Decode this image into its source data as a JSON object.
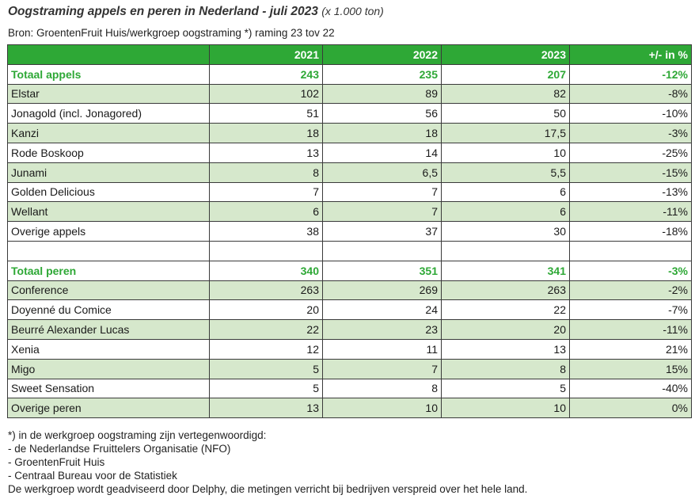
{
  "title": {
    "main": "Oogstraming appels en peren in Nederland - juli 2023",
    "unit": "(x 1.000 ton)"
  },
  "source": "Bron: GroentenFruit Huis/werkgroep oogstraming *) raming 23 tov 22",
  "colors": {
    "header_bg": "#2ea836",
    "total_text": "#2ea836",
    "row_shade": "#d6e8cc"
  },
  "table": {
    "columns": [
      "",
      "2021",
      "2022",
      "2023",
      "+/- in %"
    ],
    "rows": [
      {
        "type": "total",
        "cells": [
          "Totaal appels",
          "243",
          "235",
          "207",
          "-12%"
        ]
      },
      {
        "type": "shade",
        "cells": [
          "Elstar",
          "102",
          "89",
          "82",
          "-8%"
        ]
      },
      {
        "type": "plain",
        "cells": [
          "Jonagold (incl. Jonagored)",
          "51",
          "56",
          "50",
          "-10%"
        ]
      },
      {
        "type": "shade",
        "cells": [
          "Kanzi",
          "18",
          "18",
          "17,5",
          "-3%"
        ]
      },
      {
        "type": "plain",
        "cells": [
          "Rode Boskoop",
          "13",
          "14",
          "10",
          "-25%"
        ]
      },
      {
        "type": "shade",
        "cells": [
          "Junami",
          "8",
          "6,5",
          "5,5",
          "-15%"
        ]
      },
      {
        "type": "plain",
        "cells": [
          "Golden Delicious",
          "7",
          "7",
          "6",
          "-13%"
        ]
      },
      {
        "type": "shade",
        "cells": [
          "Wellant",
          "6",
          "7",
          "6",
          "-11%"
        ]
      },
      {
        "type": "plain",
        "cells": [
          "Overige appels",
          "38",
          "37",
          "30",
          "-18%"
        ]
      },
      {
        "type": "blank",
        "cells": [
          "",
          "",
          "",
          "",
          ""
        ]
      },
      {
        "type": "total",
        "cells": [
          "Totaal peren",
          "340",
          "351",
          "341",
          "-3%"
        ]
      },
      {
        "type": "shade",
        "cells": [
          "Conference",
          "263",
          "269",
          "263",
          "-2%"
        ]
      },
      {
        "type": "plain",
        "cells": [
          "Doyenné du Comice",
          "20",
          "24",
          "22",
          "-7%"
        ]
      },
      {
        "type": "shade",
        "cells": [
          "Beurré Alexander Lucas",
          "22",
          "23",
          "20",
          "-11%"
        ]
      },
      {
        "type": "plain",
        "cells": [
          "Xenia",
          "12",
          "11",
          "13",
          "21%"
        ]
      },
      {
        "type": "shade",
        "cells": [
          "Migo",
          "5",
          "7",
          "8",
          "15%"
        ]
      },
      {
        "type": "plain",
        "cells": [
          "Sweet Sensation",
          "5",
          "8",
          "5",
          "-40%"
        ]
      },
      {
        "type": "shade",
        "cells": [
          "Overige peren",
          "13",
          "10",
          "10",
          "0%"
        ]
      }
    ]
  },
  "footnotes": [
    "*) in de werkgroep oogstraming zijn vertegenwoordigd:",
    "- de Nederlandse Fruittelers Organisatie (NFO)",
    "- GroentenFruit Huis",
    "- Centraal Bureau voor de Statistiek",
    "De werkgroep wordt geadviseerd door Delphy, die metingen verricht bij bedrijven verspreid over het hele land."
  ]
}
